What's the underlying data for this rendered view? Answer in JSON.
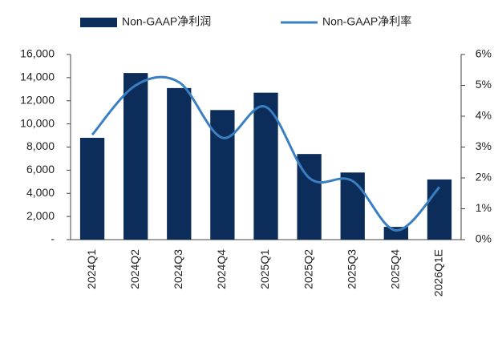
{
  "chart_data": {
    "type": "bar_line",
    "categories": [
      "2024Q1",
      "2024Q2",
      "2024Q3",
      "2024Q4",
      "2025Q1",
      "2025Q2",
      "2025Q3",
      "2025Q4",
      "2026Q1E"
    ],
    "series": [
      {
        "name": "Non-GAAP净利润",
        "color": "#0c2d5a",
        "type": "bar",
        "values": [
          8800,
          14400,
          13100,
          11200,
          12700,
          7400,
          5800,
          1100,
          5200
        ]
      },
      {
        "name": "Non-GAAP净利率",
        "color": "#3a7fc1",
        "type": "line",
        "axis": "y2",
        "values": [
          3.4,
          5.0,
          5.1,
          3.3,
          4.3,
          2.0,
          1.9,
          0.3,
          1.7
        ]
      }
    ],
    "ylim": [
      0,
      16000
    ],
    "yticks": [
      {
        "value": 0,
        "label": "-"
      },
      {
        "value": 2000,
        "label": "2,000"
      },
      {
        "value": 4000,
        "label": "4,000"
      },
      {
        "value": 6000,
        "label": "6,000"
      },
      {
        "value": 8000,
        "label": "8,000"
      },
      {
        "value": 10000,
        "label": "10,000"
      },
      {
        "value": 12000,
        "label": "12,000"
      },
      {
        "value": 14000,
        "label": "14,000"
      },
      {
        "value": 16000,
        "label": "16,000"
      }
    ],
    "y2lim": [
      0,
      6
    ],
    "y2ticks": [
      {
        "value": 0,
        "label": "0%"
      },
      {
        "value": 1,
        "label": "1%"
      },
      {
        "value": 2,
        "label": "2%"
      },
      {
        "value": 3,
        "label": "3%"
      },
      {
        "value": 4,
        "label": "4%"
      },
      {
        "value": 5,
        "label": "5%"
      },
      {
        "value": 6,
        "label": "6%"
      }
    ],
    "legend": "top"
  }
}
